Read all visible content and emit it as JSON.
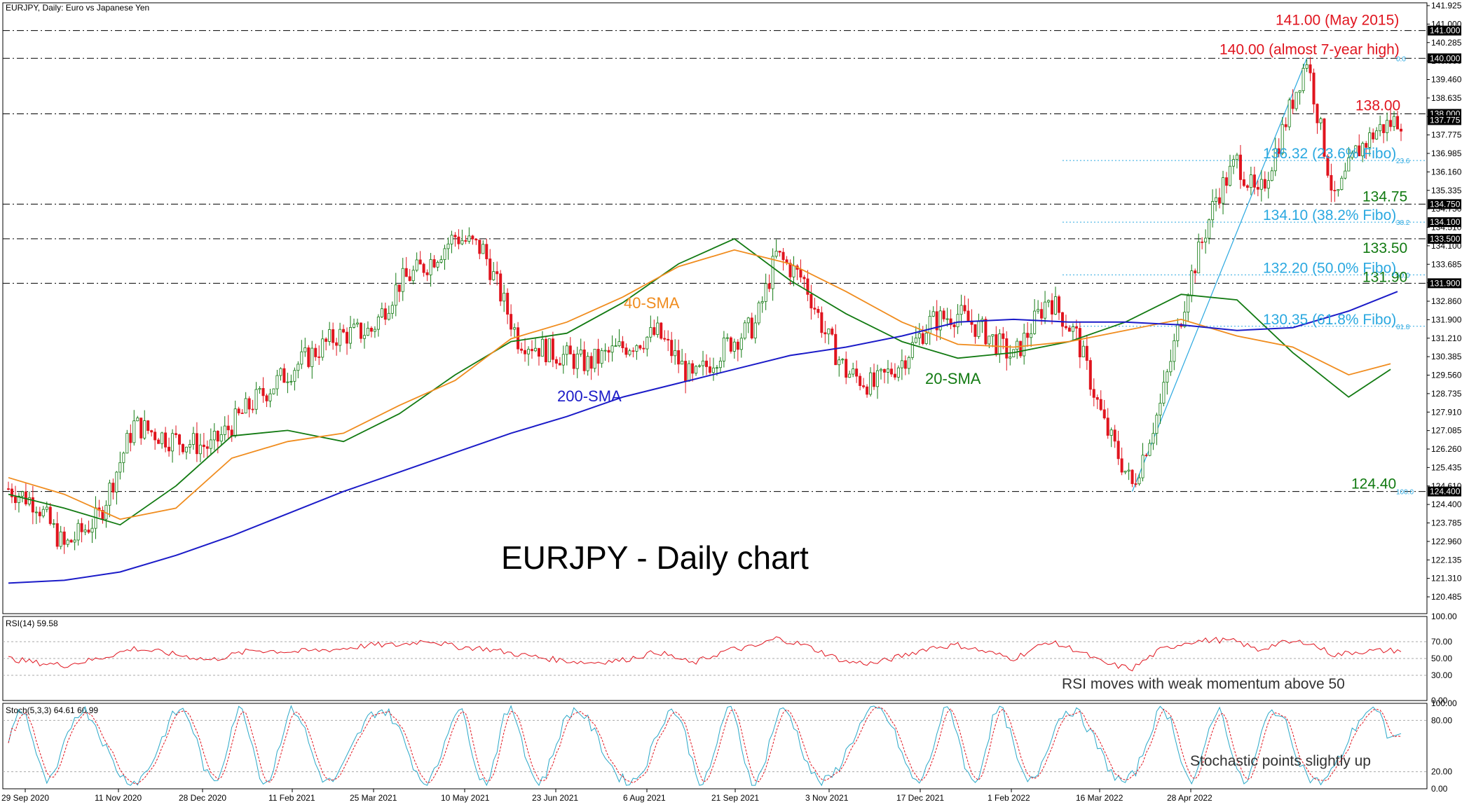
{
  "chart_data": {
    "type": "line",
    "symbol_header": "EURJPY, Daily:  Euro vs Japanese Yen",
    "title": "EURJPY - Daily chart",
    "x_tick_labels": [
      "29 Sep 2020",
      "11 Nov 2020",
      "28 Dec 2020",
      "11 Feb 2021",
      "25 Mar 2021",
      "10 May 2021",
      "23 Jun 2021",
      "6 Aug 2021",
      "21 Sep 2021",
      "3 Nov 2021",
      "17 Dec 2021",
      "1 Feb 2022",
      "16 Mar 2022",
      "28 Apr 2022"
    ],
    "y_tick_labels": [
      "141.925",
      "141.000",
      "140.285",
      "140.000",
      "139.460",
      "138.635",
      "138.000",
      "137.775",
      "136.985",
      "136.160",
      "135.335",
      "134.750",
      "134.510",
      "134.100",
      "133.685",
      "133.500",
      "132.860",
      "131.900",
      "131.210",
      "130.385",
      "129.560",
      "128.735",
      "127.910",
      "127.085",
      "126.260",
      "125.435",
      "124.610",
      "124.400",
      "123.785",
      "122.960",
      "122.135",
      "121.310",
      "120.485"
    ],
    "ylim": [
      120.0,
      142.0
    ],
    "series": [
      {
        "name": "20-SMA",
        "color": "#127a12",
        "x": [
          0,
          8,
          16,
          24,
          32,
          40,
          48,
          56,
          64,
          72,
          80,
          88,
          96,
          104,
          112,
          120,
          128,
          136,
          144,
          152,
          160,
          168,
          176,
          184,
          192,
          198
        ],
        "values": [
          124.3,
          123.8,
          123.2,
          124.6,
          126.4,
          126.6,
          126.2,
          127.2,
          128.6,
          129.8,
          130.1,
          131.2,
          132.6,
          133.5,
          132.0,
          130.8,
          129.8,
          129.2,
          129.4,
          129.8,
          130.5,
          131.5,
          131.3,
          129.4,
          127.8,
          128.8
        ]
      },
      {
        "name": "40-SMA",
        "color": "#f08c1e",
        "x": [
          0,
          8,
          16,
          24,
          32,
          40,
          48,
          56,
          64,
          72,
          80,
          88,
          96,
          104,
          112,
          120,
          128,
          136,
          144,
          152,
          160,
          168,
          176,
          184,
          192,
          198
        ],
        "values": [
          124.9,
          124.3,
          123.4,
          123.8,
          125.6,
          126.2,
          126.5,
          127.5,
          128.4,
          129.9,
          130.5,
          131.4,
          132.5,
          133.1,
          132.6,
          131.6,
          130.5,
          129.7,
          129.6,
          129.8,
          130.2,
          130.6,
          130.0,
          129.6,
          128.6,
          129.0
        ]
      },
      {
        "name": "200-SMA",
        "color": "#1b1bc8",
        "x": [
          0,
          16,
          32,
          48,
          64,
          80,
          96,
          112,
          128,
          144,
          160,
          176,
          192,
          208,
          224,
          240,
          256,
          272,
          288,
          304,
          320,
          336,
          352,
          368,
          384,
          398
        ],
        "values": [
          121.1,
          121.2,
          121.5,
          122.1,
          122.8,
          123.6,
          124.4,
          125.1,
          125.8,
          126.5,
          127.1,
          127.8,
          128.3,
          128.8,
          129.3,
          129.6,
          130.0,
          130.5,
          130.6,
          130.5,
          130.5,
          130.4,
          130.2,
          130.3,
          130.9,
          131.6
        ]
      }
    ],
    "levels": [
      {
        "value": 141.0,
        "label": "141.00 (May 2015)",
        "color": "#e0141e"
      },
      {
        "value": 140.0,
        "label": "140.00 (almost 7-year high)",
        "color": "#e0141e"
      },
      {
        "value": 138.0,
        "label": "138.00",
        "color": "#e0141e"
      },
      {
        "value": 134.75,
        "label": "134.75",
        "color": "#127a12"
      },
      {
        "value": 133.5,
        "label": "133.50",
        "color": "#127a12"
      },
      {
        "value": 131.9,
        "label": "131.90",
        "color": "#127a12"
      },
      {
        "value": 124.4,
        "label": "124.40",
        "color": "#127a12"
      }
    ],
    "fibo_levels": [
      {
        "value": 136.32,
        "label": "136.32 (23.6% Fibo)",
        "tag": "23.6"
      },
      {
        "value": 134.1,
        "label": "134.10 (38.2% Fibo)",
        "tag": "38.2"
      },
      {
        "value": 132.2,
        "label": "132.20 (50.0% Fibo)",
        "tag": "50.0"
      },
      {
        "value": 130.35,
        "label": "130.35 (61.8% Fibo)",
        "tag": "61.8"
      }
    ],
    "fibo_tags": [
      "0.0",
      "100.0"
    ],
    "price_tags": [
      {
        "text": "141.000",
        "value": 141.0
      },
      {
        "text": "140.000",
        "value": 140.0
      },
      {
        "text": "138.000",
        "value": 138.0
      },
      {
        "text": "137.775",
        "value": 137.775
      },
      {
        "text": "134.750",
        "value": 134.75
      },
      {
        "text": "134.100",
        "value": 134.1
      },
      {
        "text": "133.500",
        "value": 133.5
      },
      {
        "text": "131.900",
        "value": 131.9
      },
      {
        "text": "124.400",
        "value": 124.4
      }
    ],
    "sma_labels": [
      "40-SMA",
      "20-SMA",
      "200-SMA"
    ],
    "price_path": {
      "x": [
        0,
        8,
        16,
        26,
        36,
        46,
        58,
        70,
        82,
        94,
        104,
        112,
        120,
        128,
        136,
        146,
        156,
        166,
        176,
        186,
        196,
        206,
        214,
        220,
        228,
        234,
        240,
        248,
        256,
        264,
        272,
        280,
        288,
        298,
        306,
        314,
        322,
        330,
        338,
        346,
        352,
        358,
        364,
        372,
        380,
        386,
        392,
        398
      ],
      "values": [
        124.5,
        124.0,
        122.4,
        123.5,
        126.8,
        126.3,
        126.0,
        127.6,
        128.9,
        130.0,
        130.2,
        131.9,
        132.6,
        133.6,
        133.1,
        129.9,
        129.4,
        129.0,
        129.6,
        130.1,
        128.4,
        129.7,
        130.4,
        132.9,
        132.0,
        130.1,
        128.7,
        128.2,
        129.1,
        130.5,
        130.8,
        130.1,
        129.2,
        131.4,
        130.0,
        126.8,
        124.6,
        127.5,
        131.8,
        135.0,
        136.3,
        134.9,
        137.0,
        140.0,
        134.8,
        136.6,
        137.4,
        137.8
      ]
    },
    "rsi": {
      "label": "RSI(14) 59.58",
      "ylim": [
        0,
        100
      ],
      "ticks": [
        "100.00",
        "70.00",
        "50.00",
        "30.00",
        "0.00"
      ],
      "note": "RSI moves with weak momentum above 50",
      "values": [
        50,
        45,
        42,
        50,
        62,
        56,
        48,
        60,
        58,
        61,
        66,
        66,
        72,
        64,
        62,
        55,
        49,
        45,
        48,
        58,
        44,
        60,
        64,
        74,
        66,
        56,
        46,
        44,
        53,
        63,
        66,
        58,
        50,
        70,
        60,
        44,
        38,
        60,
        70,
        72,
        70,
        60,
        68,
        70,
        54,
        58,
        59,
        59.58
      ]
    },
    "stochastic": {
      "label": "Stoch(5,3,3) 64.61 60.99",
      "ylim": [
        0,
        100
      ],
      "ticks": [
        "100.00",
        "80.00",
        "20.00",
        "0.00"
      ],
      "note": "Stochastic points slightly up",
      "k_last": 64.61,
      "d_last": 60.99
    },
    "colors": {
      "bull": "#127a12",
      "bear": "#e0141e",
      "level_line": "#000000",
      "fibo": "#2aa8e0",
      "rsi": "#e0141e",
      "stoch_k": "#2aa8c8",
      "stoch_d": "#e0141e"
    }
  }
}
